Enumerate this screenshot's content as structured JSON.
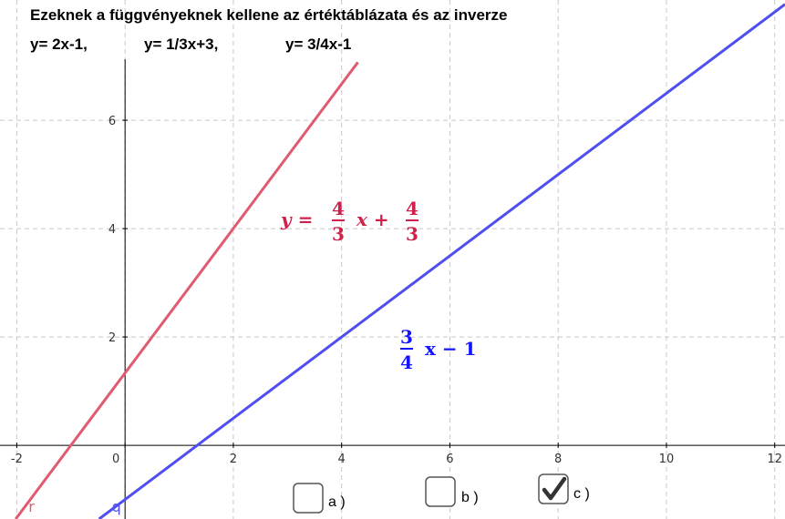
{
  "chart_data": {
    "type": "line",
    "title": "Ezeknek a függvényeknek kellene az értéktáblázata és az inverze",
    "subtitle": [
      "y= 2x-1,",
      "y= 1/3x+3,",
      "y= 3/4x-1"
    ],
    "xlim": [
      -2.31,
      12.19
    ],
    "ylim": [
      -1.36,
      8.22
    ],
    "xticks": [
      -2,
      0,
      2,
      4,
      6,
      8,
      10,
      12
    ],
    "yticks": [
      2,
      4,
      6
    ],
    "grid": true,
    "series": [
      {
        "name": "r",
        "color": "#e05a72",
        "x": [
          -2.02,
          4.3
        ],
        "values": [
          -1.36,
          7.07
        ]
      },
      {
        "name": "q",
        "color": "#4f4ff0",
        "x": [
          -0.48,
          12.19
        ],
        "values": [
          -1.36,
          8.14
        ]
      }
    ],
    "annotations": [
      {
        "color": "#d0204a",
        "lhs": "y =",
        "num1": "4",
        "den1": "3",
        "mid": "x +",
        "num2": "4",
        "den2": "3"
      },
      {
        "color": "#1414ff",
        "num": "3",
        "den": "4",
        "rest": "x − 1"
      }
    ],
    "checkboxes": [
      {
        "label": "a )",
        "checked": false
      },
      {
        "label": "b )",
        "checked": false
      },
      {
        "label": "c )",
        "checked": true
      }
    ]
  }
}
